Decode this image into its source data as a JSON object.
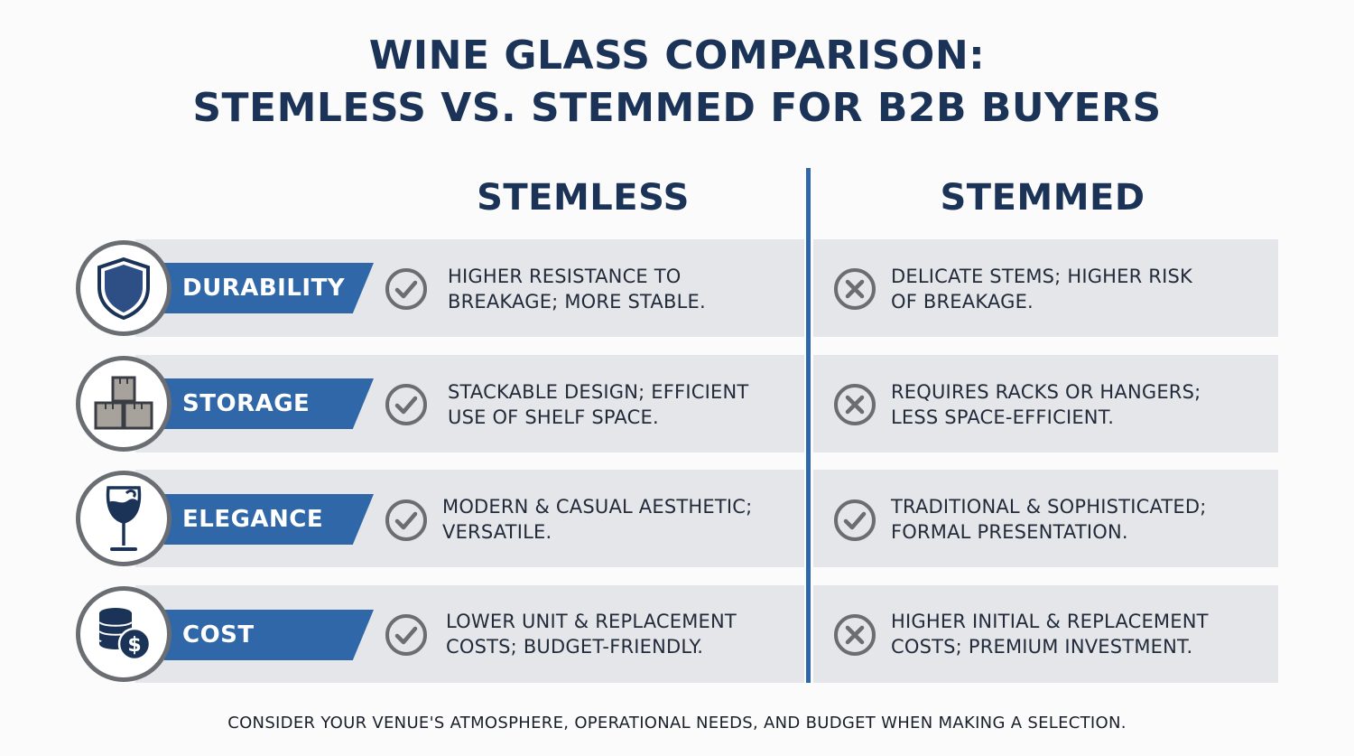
{
  "title": {
    "line1": "WINE GLASS COMPARISON:",
    "line2": "STEMLESS VS. STEMMED FOR B2B BUYERS"
  },
  "columns": {
    "left": "STEMLESS",
    "right": "STEMMED"
  },
  "colors": {
    "navy": "#1c3358",
    "accent_blue": "#2f67a8",
    "band_gray": "#e4e6ea",
    "mark_gray": "#6a6d72"
  },
  "rows": [
    {
      "label": "DURABILITY",
      "icon": "shield-icon",
      "stemless": {
        "mark": "check",
        "line1": "HIGHER RESISTANCE TO",
        "line2": "BREAKAGE; MORE STABLE."
      },
      "stemmed": {
        "mark": "cross",
        "line1": "DELICATE STEMS; HIGHER RISK",
        "line2": "OF BREAKAGE."
      }
    },
    {
      "label": "STORAGE",
      "icon": "stacked-boxes-icon",
      "stemless": {
        "mark": "check",
        "line1": "STACKABLE DESIGN; EFFICIENT",
        "line2": "USE OF SHELF SPACE."
      },
      "stemmed": {
        "mark": "cross",
        "line1": "REQUIRES RACKS OR HANGERS;",
        "line2": "LESS SPACE-EFFICIENT."
      }
    },
    {
      "label": "ELEGANCE",
      "icon": "wine-glass-icon",
      "stemless": {
        "mark": "check",
        "line1": "MODERN & CASUAL AESTHETIC;",
        "line2": "VERSATILE."
      },
      "stemmed": {
        "mark": "check",
        "line1": "TRADITIONAL & SOPHISTICATED;",
        "line2": "FORMAL PRESENTATION."
      }
    },
    {
      "label": "COST",
      "icon": "coins-dollar-icon",
      "stemless": {
        "mark": "check",
        "line1": "LOWER UNIT & REPLACEMENT",
        "line2": "COSTS; BUDGET-FRIENDLY."
      },
      "stemmed": {
        "mark": "cross",
        "line1": "HIGHER INITIAL & REPLACEMENT",
        "line2": "COSTS; PREMIUM INVESTMENT."
      }
    }
  ],
  "footer": "CONSIDER YOUR VENUE'S ATMOSPHERE, OPERATIONAL NEEDS, AND BUDGET WHEN MAKING A SELECTION."
}
